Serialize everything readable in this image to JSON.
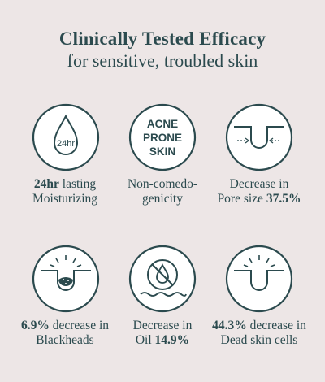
{
  "header": {
    "title": "Clinically Tested Efficacy",
    "subtitle": "for sensitive, troubled skin"
  },
  "colors": {
    "background": "#ede6e6",
    "ink": "#2b4a4e",
    "badge_fill": "#ffffff"
  },
  "items": [
    {
      "icon": "moisture-drop-icon",
      "icon_text": "24hr",
      "line1_bold": "24hr",
      "line1_rest": " lasting",
      "line2": "Moisturizing"
    },
    {
      "icon": "acne-prone-skin-icon",
      "icon_lines": [
        "ACNE",
        "PRONE",
        "SKIN"
      ],
      "line1": "Non-comedo-",
      "line2": "genicity"
    },
    {
      "icon": "pore-size-icon",
      "line1": "Decrease in",
      "line2_text": "Pore size ",
      "line2_bold": "37.5%"
    },
    {
      "icon": "blackhead-icon",
      "line1_bold": "6.9%",
      "line1_rest": " decrease in",
      "line2": "Blackheads"
    },
    {
      "icon": "no-oil-icon",
      "line1": "Decrease in",
      "line2_text": "Oil ",
      "line2_bold": "14.9%"
    },
    {
      "icon": "dead-skin-icon",
      "line1_bold": "44.3%",
      "line1_rest": " decrease in",
      "line2": "Dead skin cells"
    }
  ]
}
